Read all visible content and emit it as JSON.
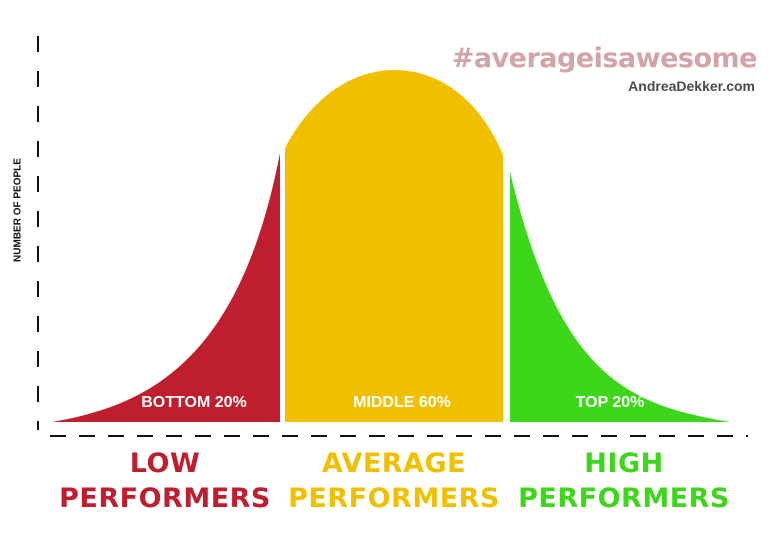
{
  "header": {
    "hashtag": "#averageisawesome",
    "site": "AndreaDekker.com"
  },
  "axis": {
    "y_label": "NUMBER OF PEOPLE"
  },
  "segments": [
    {
      "id": "low",
      "percent_label": "BOTTOM 20%",
      "title_line1": "LOW",
      "title_line2": "PERFORMERS",
      "color": "#be1e2d"
    },
    {
      "id": "average",
      "percent_label": "MIDDLE 60%",
      "title_line1": "AVERAGE",
      "title_line2": "PERFORMERS",
      "color": "#f0c000"
    },
    {
      "id": "high",
      "percent_label": "TOP 20%",
      "title_line1": "HIGH",
      "title_line2": "PERFORMERS",
      "color": "#3dd61a"
    }
  ],
  "colors": {
    "hashtag": "#d3a4a7",
    "site": "#4a4a4a",
    "axis": "#111111"
  }
}
